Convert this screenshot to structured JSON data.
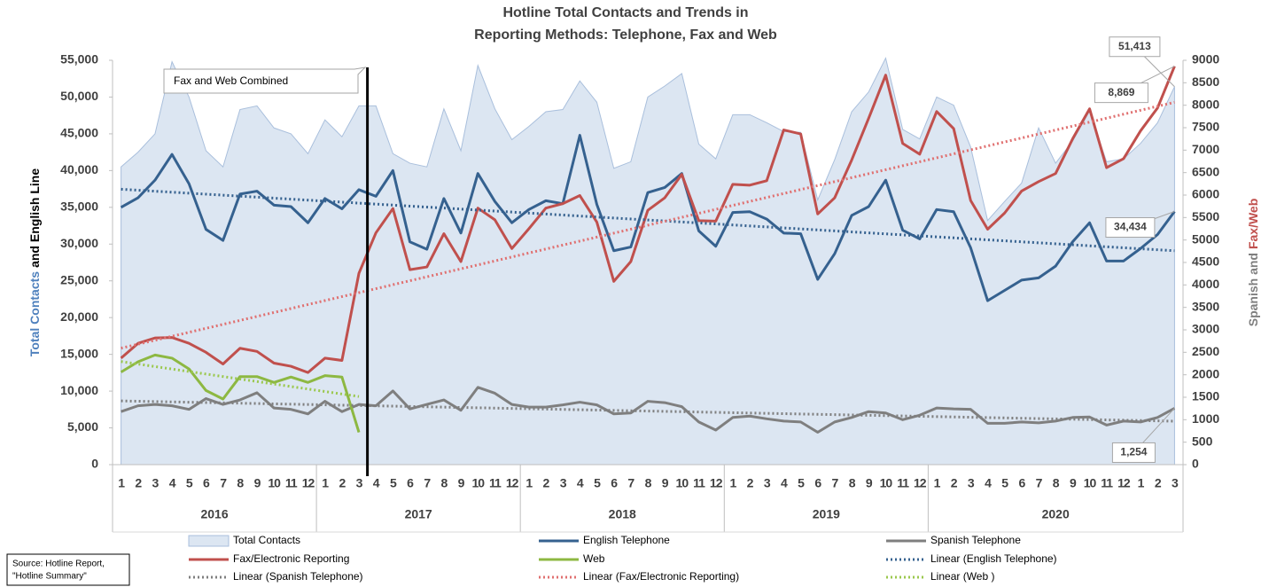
{
  "chart_data": {
    "type": "combo",
    "title": [
      "Hotline Total Contacts and Trends in",
      "Reporting Methods: Telephone, Fax and Web"
    ],
    "ylabel_parts": [
      "Total Contacts",
      "and English Line"
    ],
    "y2label_parts": [
      "Spanish and",
      "Fax/Web"
    ],
    "categories": [
      "1",
      "2",
      "3",
      "4",
      "5",
      "6",
      "7",
      "8",
      "9",
      "10",
      "11",
      "12",
      "1",
      "2",
      "3",
      "4",
      "5",
      "6",
      "7",
      "8",
      "9",
      "10",
      "11",
      "12",
      "1",
      "2",
      "3",
      "4",
      "5",
      "6",
      "7",
      "8",
      "9",
      "10",
      "11",
      "12",
      "1",
      "2",
      "3",
      "4",
      "5",
      "6",
      "7",
      "8",
      "9",
      "10",
      "11",
      "12",
      "1",
      "2",
      "3",
      "4",
      "5",
      "6",
      "7",
      "8",
      "9",
      "10",
      "11",
      "12",
      "1",
      "2",
      "3"
    ],
    "year_groups": [
      "2016",
      "2017",
      "2018",
      "2019",
      "2020"
    ],
    "year_spans": [
      12,
      12,
      12,
      12,
      15
    ],
    "ylim": [
      0,
      55000
    ],
    "yticks": [
      0,
      {
        "value": 5000,
        "label": "5,000"
      },
      {
        "value": 10000,
        "label": "10,000"
      },
      {
        "value": 15000,
        "label": "15,000"
      },
      {
        "value": 20000,
        "label": "20,000"
      },
      {
        "value": 25000,
        "label": "25,000"
      },
      {
        "value": 30000,
        "label": "30,000"
      },
      {
        "value": 35000,
        "label": "35,000"
      },
      {
        "value": 40000,
        "label": "40,000"
      },
      {
        "value": 45000,
        "label": "45,000"
      },
      {
        "value": 50000,
        "label": "50,000"
      },
      {
        "value": 55000,
        "label": "55,000"
      }
    ],
    "y2lim": [
      0,
      9000
    ],
    "y2ticks": [
      0,
      500,
      1000,
      1500,
      2000,
      2500,
      3000,
      3500,
      4000,
      4500,
      5000,
      5500,
      6000,
      6500,
      7000,
      7500,
      8000,
      8500,
      9000
    ],
    "annotation": {
      "text": "Fax and Web Combined",
      "x": 14.5
    },
    "source": [
      "Source: Hotline Report,",
      "\"Hotline Summary\""
    ],
    "series": [
      {
        "name": "Total Contacts",
        "kind": "area",
        "color": "#dce6f2",
        "stroke": "#a9bfdc",
        "values": [
          40500,
          42500,
          45000,
          54800,
          50000,
          42700,
          40500,
          48300,
          48800,
          45800,
          45000,
          42300,
          46900,
          44600,
          48800,
          48800,
          42300,
          41000,
          40500,
          48400,
          42700,
          54300,
          48400,
          44200,
          46000,
          48000,
          48300,
          52200,
          49300,
          40300,
          41200,
          50000,
          51500,
          53200,
          43600,
          41600,
          47600,
          47600,
          46500,
          45300,
          45200,
          36000,
          41500,
          48000,
          50700,
          55300,
          45600,
          44300,
          50000,
          48900,
          43200,
          33200,
          35800,
          38300,
          45800,
          41000,
          44000,
          48100,
          41200,
          41600,
          43700,
          46500,
          51413
        ],
        "value_labels": [
          null,
          null,
          null,
          null,
          null,
          null,
          null,
          null,
          null,
          null,
          null,
          null,
          null,
          null,
          null,
          null,
          null,
          null,
          null,
          null,
          null,
          null,
          null,
          null,
          null,
          null,
          null,
          null,
          null,
          null,
          null,
          null,
          null,
          null,
          null,
          null,
          null,
          null,
          null,
          null,
          null,
          null,
          null,
          null,
          null,
          null,
          null,
          null,
          null,
          null,
          null,
          null,
          null,
          null,
          null,
          null,
          null,
          null,
          null,
          null,
          null,
          null,
          "51,413"
        ]
      },
      {
        "name": "English Telephone",
        "kind": "line",
        "color": "#35618f",
        "values": [
          35000,
          36300,
          38700,
          42200,
          38200,
          32000,
          30500,
          36800,
          37200,
          35300,
          35100,
          32900,
          36200,
          34800,
          37400,
          36500,
          40000,
          30300,
          29300,
          36200,
          31500,
          39600,
          35800,
          32900,
          34700,
          35900,
          35500,
          44800,
          35400,
          29100,
          29600,
          37000,
          37700,
          39600,
          31800,
          29700,
          34300,
          34400,
          33400,
          31500,
          31400,
          25200,
          28700,
          33900,
          35100,
          38700,
          31900,
          30700,
          34700,
          34400,
          29500,
          22300,
          23700,
          25100,
          25400,
          27000,
          30300,
          32900,
          27700,
          27700,
          29400,
          31300,
          34434
        ],
        "value_labels": [
          null,
          null,
          null,
          null,
          null,
          null,
          null,
          null,
          null,
          null,
          null,
          null,
          null,
          null,
          null,
          null,
          null,
          null,
          null,
          null,
          null,
          null,
          null,
          null,
          null,
          null,
          null,
          null,
          null,
          null,
          null,
          null,
          null,
          null,
          null,
          null,
          null,
          null,
          null,
          null,
          null,
          null,
          null,
          null,
          null,
          null,
          null,
          null,
          null,
          null,
          null,
          null,
          null,
          null,
          null,
          null,
          null,
          null,
          null,
          null,
          null,
          null,
          "34,434"
        ]
      },
      {
        "name": "Spanish Telephone",
        "kind": "line",
        "color": "#7f7f7f",
        "axis": "y2",
        "values": [
          1180,
          1310,
          1340,
          1310,
          1230,
          1470,
          1340,
          1440,
          1600,
          1260,
          1230,
          1130,
          1410,
          1180,
          1340,
          1310,
          1640,
          1240,
          1340,
          1440,
          1210,
          1720,
          1590,
          1340,
          1280,
          1280,
          1330,
          1390,
          1330,
          1130,
          1150,
          1410,
          1380,
          1290,
          950,
          770,
          1050,
          1080,
          1020,
          970,
          950,
          720,
          950,
          1050,
          1180,
          1150,
          1000,
          1100,
          1260,
          1240,
          1230,
          920,
          920,
          950,
          930,
          970,
          1050,
          1060,
          880,
          970,
          950,
          1050,
          1254
        ],
        "value_labels": [
          null,
          null,
          null,
          null,
          null,
          null,
          null,
          null,
          null,
          null,
          null,
          null,
          null,
          null,
          null,
          null,
          null,
          null,
          null,
          null,
          null,
          null,
          null,
          null,
          null,
          null,
          null,
          null,
          null,
          null,
          null,
          null,
          null,
          null,
          null,
          null,
          null,
          null,
          null,
          null,
          null,
          null,
          null,
          null,
          null,
          null,
          null,
          null,
          null,
          null,
          null,
          null,
          null,
          null,
          null,
          null,
          null,
          null,
          null,
          null,
          null,
          null,
          "1,254"
        ]
      },
      {
        "name": "Fax/Electronic Reporting",
        "kind": "line",
        "color": "#c0504d",
        "axis": "y2",
        "values": [
          2370,
          2700,
          2820,
          2830,
          2700,
          2500,
          2240,
          2590,
          2520,
          2260,
          2190,
          2050,
          2370,
          2320,
          4260,
          5160,
          5700,
          4340,
          4400,
          5140,
          4520,
          5710,
          5450,
          4810,
          5250,
          5710,
          5810,
          5990,
          5400,
          4080,
          4520,
          5660,
          5940,
          6460,
          5430,
          5420,
          6240,
          6220,
          6320,
          7450,
          7360,
          5580,
          5940,
          6780,
          7710,
          8670,
          7150,
          6910,
          7860,
          7480,
          5880,
          5240,
          5600,
          6090,
          6300,
          6480,
          7250,
          7920,
          6610,
          6810,
          7430,
          7940,
          8869
        ],
        "value_labels": [
          null,
          null,
          null,
          null,
          null,
          null,
          null,
          null,
          null,
          null,
          null,
          null,
          null,
          null,
          null,
          null,
          null,
          null,
          null,
          null,
          null,
          null,
          null,
          null,
          null,
          null,
          null,
          null,
          null,
          null,
          null,
          null,
          null,
          null,
          null,
          null,
          null,
          null,
          null,
          null,
          null,
          null,
          null,
          null,
          null,
          null,
          null,
          null,
          null,
          null,
          null,
          null,
          null,
          null,
          null,
          null,
          null,
          null,
          null,
          null,
          null,
          null,
          "8,869"
        ]
      },
      {
        "name": "Web",
        "kind": "line",
        "color": "#8db842",
        "axis": "y2",
        "values": [
          2060,
          2290,
          2440,
          2370,
          2130,
          1650,
          1460,
          1960,
          1960,
          1830,
          1950,
          1830,
          1980,
          1950,
          720,
          null,
          null,
          null,
          null,
          null,
          null,
          null,
          null,
          null,
          null,
          null,
          null,
          null,
          null,
          null,
          null,
          null,
          null,
          null,
          null,
          null,
          null,
          null,
          null,
          null,
          null,
          null,
          null,
          null,
          null,
          null,
          null,
          null,
          null,
          null,
          null,
          null,
          null,
          null,
          null,
          null,
          null,
          null,
          null,
          null,
          null,
          null,
          null
        ]
      },
      {
        "name": "Linear (English Telephone)",
        "kind": "trend",
        "of": 1,
        "color": "#35618f"
      },
      {
        "name": "Linear (Spanish Telephone)",
        "kind": "trend",
        "of": 2,
        "color": "#7f7f7f",
        "axis": "y2"
      },
      {
        "name": "Linear (Fax/Electronic Reporting)",
        "kind": "trend",
        "of": 3,
        "color": "#e07070",
        "axis": "y2"
      },
      {
        "name": "Linear (Web )",
        "kind": "trend",
        "of": 4,
        "color": "#9bc84e",
        "axis": "y2"
      }
    ]
  }
}
